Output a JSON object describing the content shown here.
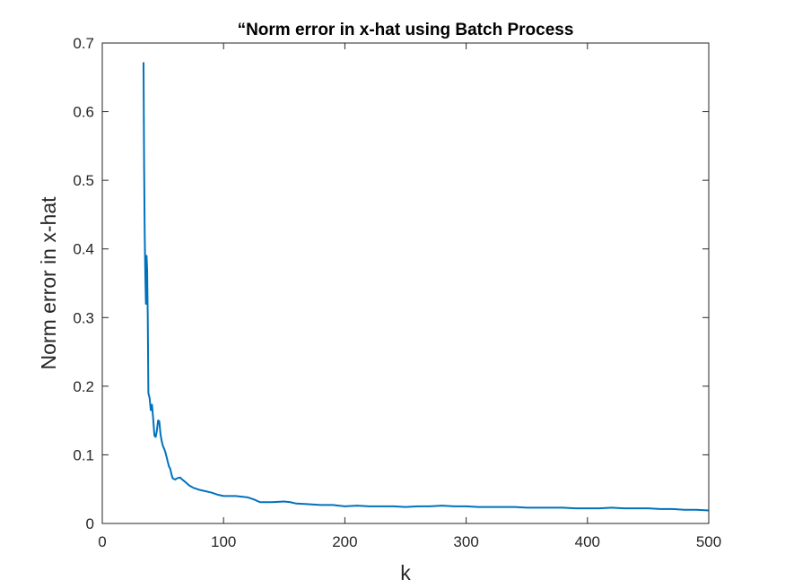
{
  "chart_data": {
    "type": "line",
    "title": "“Norm error in x-hat using Batch Process",
    "xlabel": "k",
    "ylabel": "Norm error in x-hat",
    "xlim": [
      0,
      500
    ],
    "ylim": [
      0,
      0.7
    ],
    "xticks": [
      0,
      100,
      200,
      300,
      400,
      500
    ],
    "yticks": [
      0,
      0.1,
      0.2,
      0.3,
      0.4,
      0.5,
      0.6,
      0.7
    ],
    "xtick_labels": [
      "0",
      "100",
      "200",
      "300",
      "400",
      "500"
    ],
    "ytick_labels": [
      "0",
      "0.1",
      "0.2",
      "0.3",
      "0.4",
      "0.5",
      "0.6",
      "0.7"
    ],
    "grid": false,
    "box": true,
    "colors": {
      "line": "#0072BD",
      "axes": "#262626",
      "background": "#ffffff"
    },
    "series": [
      {
        "x": [
          34,
          34.5,
          35,
          35.5,
          36,
          36.5,
          37,
          37.5,
          38,
          39,
          40,
          41,
          42,
          43,
          44,
          45,
          46,
          47,
          48,
          49,
          50,
          51,
          52,
          53,
          54,
          55,
          56,
          57,
          58,
          60,
          62,
          64,
          66,
          68,
          70,
          72,
          75,
          80,
          85,
          90,
          95,
          100,
          110,
          120,
          125,
          130,
          140,
          150,
          155,
          160,
          170,
          180,
          190,
          200,
          210,
          220,
          230,
          240,
          250,
          260,
          270,
          280,
          290,
          300,
          310,
          320,
          330,
          340,
          350,
          360,
          370,
          380,
          390,
          400,
          410,
          420,
          430,
          440,
          450,
          460,
          470,
          480,
          490,
          500
        ],
        "y": [
          0.672,
          0.52,
          0.42,
          0.36,
          0.32,
          0.39,
          0.37,
          0.3,
          0.19,
          0.183,
          0.165,
          0.173,
          0.152,
          0.128,
          0.126,
          0.135,
          0.15,
          0.149,
          0.13,
          0.12,
          0.113,
          0.109,
          0.104,
          0.097,
          0.09,
          0.083,
          0.08,
          0.072,
          0.066,
          0.064,
          0.066,
          0.067,
          0.064,
          0.061,
          0.058,
          0.055,
          0.052,
          0.049,
          0.047,
          0.045,
          0.042,
          0.04,
          0.04,
          0.038,
          0.035,
          0.031,
          0.031,
          0.032,
          0.031,
          0.029,
          0.028,
          0.027,
          0.027,
          0.025,
          0.026,
          0.025,
          0.025,
          0.025,
          0.024,
          0.025,
          0.025,
          0.026,
          0.025,
          0.025,
          0.024,
          0.024,
          0.024,
          0.024,
          0.023,
          0.023,
          0.023,
          0.023,
          0.022,
          0.022,
          0.022,
          0.023,
          0.022,
          0.022,
          0.022,
          0.021,
          0.021,
          0.02,
          0.02,
          0.019
        ]
      }
    ]
  }
}
